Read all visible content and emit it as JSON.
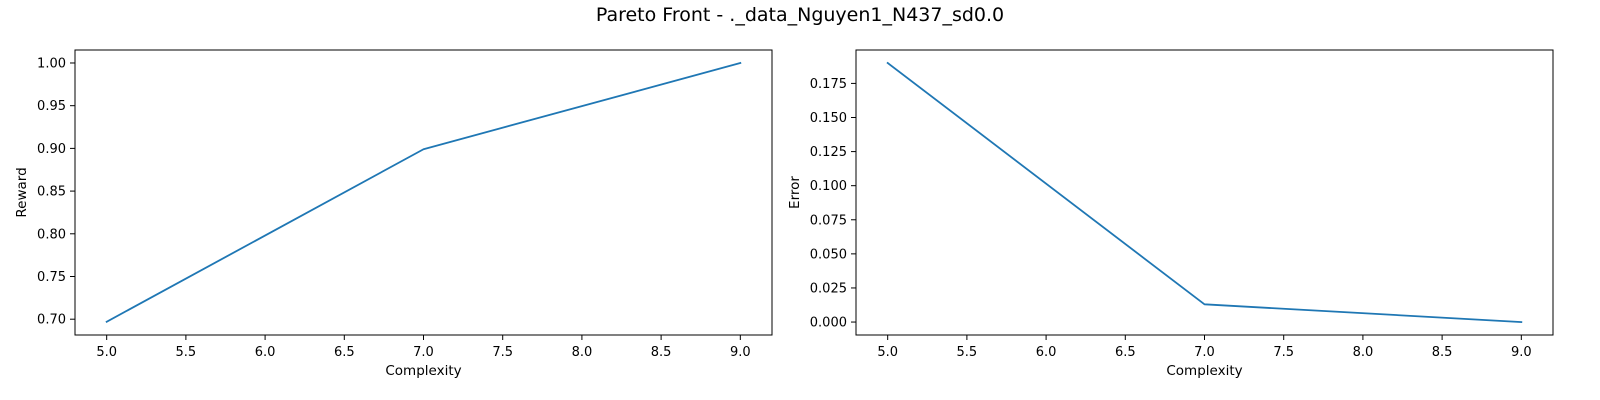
{
  "figure": {
    "title": "Pareto Front - ._data_Nguyen1_N437_sd0.0"
  },
  "chart_data": [
    {
      "type": "line",
      "title": "",
      "xlabel": "Complexity",
      "ylabel": "Reward",
      "x": [
        5,
        7,
        9
      ],
      "series": [
        {
          "values": [
            0.697,
            0.899,
            1.0
          ],
          "color": "#1f77b4"
        }
      ],
      "xlim": [
        4.8,
        9.2
      ],
      "ylim": [
        0.6815,
        1.0152
      ],
      "xticks": [
        5.0,
        5.5,
        6.0,
        6.5,
        7.0,
        7.5,
        8.0,
        8.5,
        9.0
      ],
      "xtick_labels": [
        "5.0",
        "5.5",
        "6.0",
        "6.5",
        "7.0",
        "7.5",
        "8.0",
        "8.5",
        "9.0"
      ],
      "yticks": [
        0.7,
        0.75,
        0.8,
        0.85,
        0.9,
        0.95,
        1.0
      ],
      "ytick_labels": [
        "0.70",
        "0.75",
        "0.80",
        "0.85",
        "0.90",
        "0.95",
        "1.00"
      ],
      "grid": false,
      "legend": "none"
    },
    {
      "type": "line",
      "title": "",
      "xlabel": "Complexity",
      "ylabel": "Error",
      "x": [
        5,
        7,
        9
      ],
      "series": [
        {
          "values": [
            0.19,
            0.013,
            0.0
          ],
          "color": "#1f77b4"
        }
      ],
      "xlim": [
        4.8,
        9.2
      ],
      "ylim": [
        -0.0095,
        0.1995
      ],
      "xticks": [
        5.0,
        5.5,
        6.0,
        6.5,
        7.0,
        7.5,
        8.0,
        8.5,
        9.0
      ],
      "xtick_labels": [
        "5.0",
        "5.5",
        "6.0",
        "6.5",
        "7.0",
        "7.5",
        "8.0",
        "8.5",
        "9.0"
      ],
      "yticks": [
        0.0,
        0.025,
        0.05,
        0.075,
        0.1,
        0.125,
        0.15,
        0.175
      ],
      "ytick_labels": [
        "0.000",
        "0.025",
        "0.050",
        "0.075",
        "0.100",
        "0.125",
        "0.150",
        "0.175"
      ],
      "grid": false,
      "legend": "none"
    }
  ]
}
